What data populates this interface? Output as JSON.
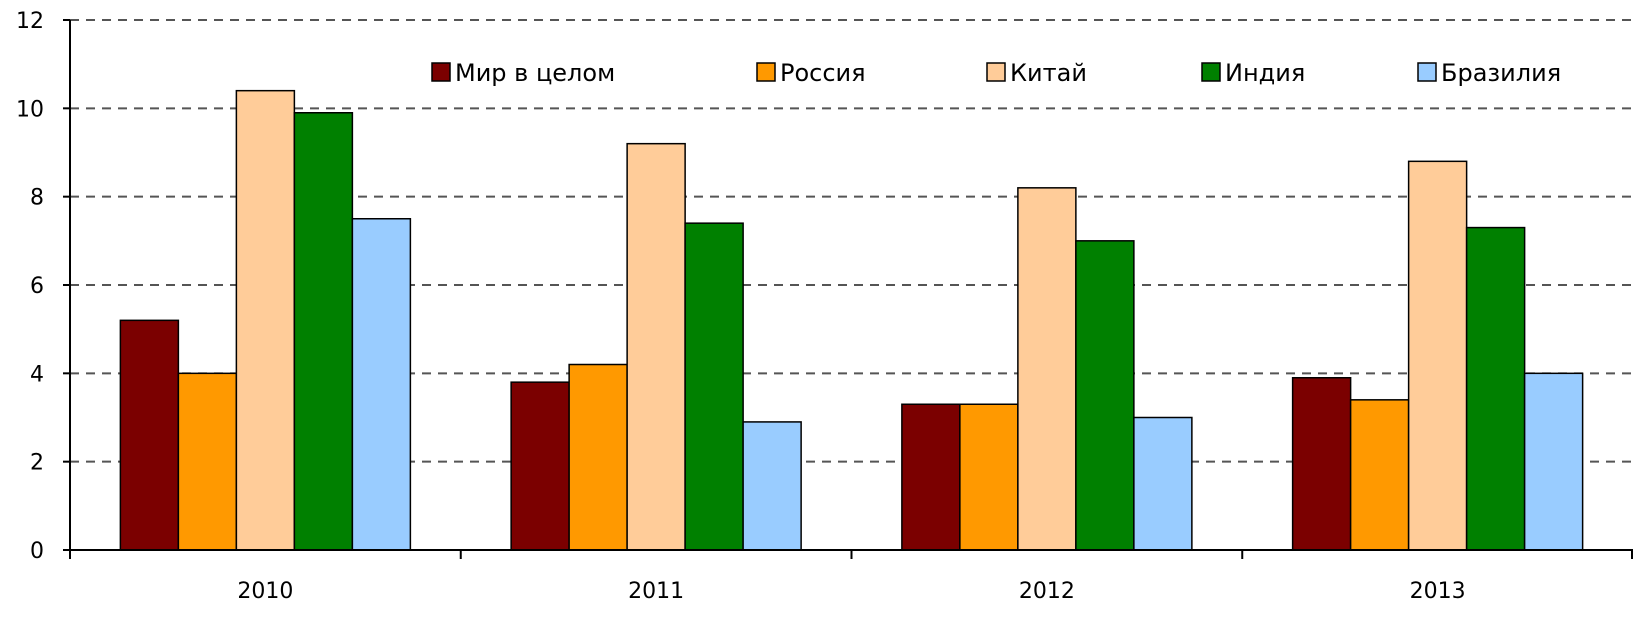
{
  "chart_data": {
    "type": "bar",
    "categories": [
      "2010",
      "2011",
      "2012",
      "2013"
    ],
    "series": [
      {
        "name": "Мир в целом",
        "color": "#7b0000",
        "values": [
          5.2,
          3.8,
          3.3,
          3.9
        ]
      },
      {
        "name": "Россия",
        "color": "#ff9900",
        "values": [
          4.0,
          4.2,
          3.3,
          3.4
        ]
      },
      {
        "name": "Китай",
        "color": "#ffcc99",
        "values": [
          10.4,
          9.2,
          8.2,
          8.8
        ]
      },
      {
        "name": "Индия",
        "color": "#008000",
        "values": [
          9.9,
          7.4,
          7.0,
          7.3
        ]
      },
      {
        "name": "Бразилия",
        "color": "#99ccff",
        "values": [
          7.5,
          2.9,
          3.0,
          4.0
        ]
      }
    ],
    "ylim": [
      0,
      12
    ],
    "y_ticks": [
      "0",
      "2",
      "4",
      "6",
      "8",
      "10",
      "12"
    ],
    "grid": "dashed horizontal",
    "legend": "top"
  }
}
